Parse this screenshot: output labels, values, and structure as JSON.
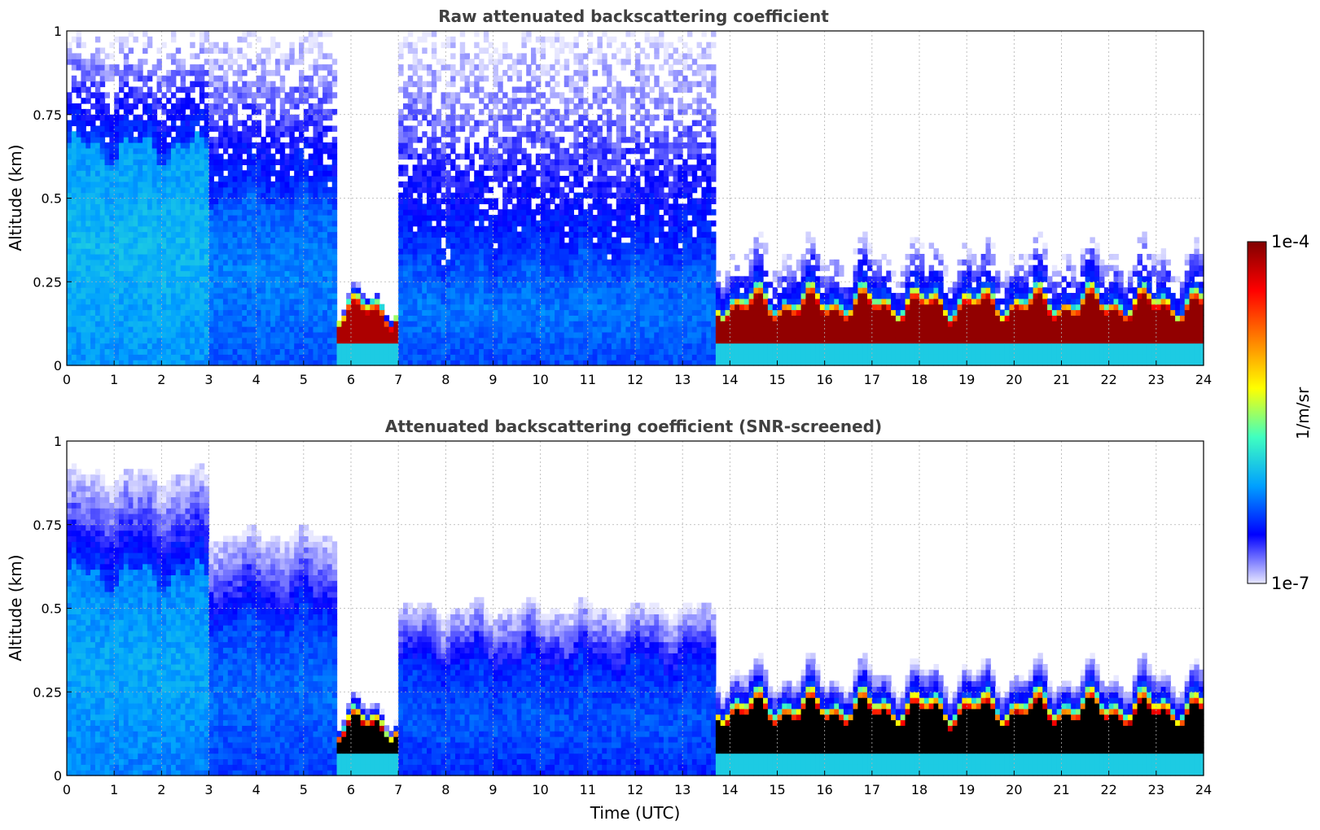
{
  "chart_data": [
    {
      "type": "heatmap",
      "title": "Raw attenuated backscattering coefficient",
      "xlabel": "",
      "ylabel": "Altitude (km)",
      "xlim": [
        0,
        24
      ],
      "ylim": [
        0,
        1
      ],
      "x_ticks": [
        "0",
        "1",
        "2",
        "3",
        "4",
        "5",
        "6",
        "7",
        "8",
        "9",
        "10",
        "11",
        "12",
        "13",
        "14",
        "15",
        "16",
        "17",
        "18",
        "19",
        "20",
        "21",
        "22",
        "23",
        "24"
      ],
      "y_ticks": [
        "0",
        "0.25",
        "0.5",
        "0.75",
        "1"
      ],
      "grid": true,
      "screened": false,
      "regimes": [
        {
          "t_start": 0,
          "t_end": 3,
          "cover_top_km": 1.0,
          "core_top_km": 0.65,
          "core_intensity": 0.32
        },
        {
          "t_start": 3,
          "t_end": 5.7,
          "cover_top_km": 1.0,
          "core_top_km": 0.5,
          "core_intensity": 0.26
        },
        {
          "t_start": 5.7,
          "t_end": 7.05,
          "cover_top_km": 0.2,
          "core_top_km": 0.18,
          "core_intensity": 0.95
        },
        {
          "t_start": 7.05,
          "t_end": 13.7,
          "cover_top_km": 1.0,
          "core_top_km": 0.3,
          "core_intensity": 0.25
        },
        {
          "t_start": 13.7,
          "t_end": 24,
          "cover_top_km": 0.34,
          "core_top_km": 0.2,
          "core_intensity": 0.98
        }
      ]
    },
    {
      "type": "heatmap",
      "title": "Attenuated backscattering coefficient (SNR-screened)",
      "xlabel": "Time (UTC)",
      "ylabel": "Altitude (km)",
      "xlim": [
        0,
        24
      ],
      "ylim": [
        0,
        1
      ],
      "x_ticks": [
        "0",
        "1",
        "2",
        "3",
        "4",
        "5",
        "6",
        "7",
        "8",
        "9",
        "10",
        "11",
        "12",
        "13",
        "14",
        "15",
        "16",
        "17",
        "18",
        "19",
        "20",
        "21",
        "22",
        "23",
        "24"
      ],
      "y_ticks": [
        "0",
        "0.25",
        "0.5",
        "0.75",
        "1"
      ],
      "grid": true,
      "screened": true,
      "saturated_color": "#000000",
      "regimes": [
        {
          "t_start": 0,
          "t_end": 3,
          "cover_top_km": 0.9,
          "core_top_km": 0.6,
          "core_intensity": 0.3
        },
        {
          "t_start": 3,
          "t_end": 5.7,
          "cover_top_km": 0.72,
          "core_top_km": 0.45,
          "core_intensity": 0.24
        },
        {
          "t_start": 5.7,
          "t_end": 7.05,
          "cover_top_km": 0.2,
          "core_top_km": 0.17,
          "core_intensity": 1.0
        },
        {
          "t_start": 7.05,
          "t_end": 13.7,
          "cover_top_km": 0.5,
          "core_top_km": 0.3,
          "core_intensity": 0.22
        },
        {
          "t_start": 13.7,
          "t_end": 24,
          "cover_top_km": 0.3,
          "core_top_km": 0.22,
          "core_intensity": 1.0
        }
      ]
    }
  ],
  "colorbar": {
    "label": "1/m/sr",
    "max_label": "1e-4",
    "min_label": "1e-7",
    "scale": "log",
    "colormap": [
      "#e8e8ff",
      "#0000ff",
      "#00a0ff",
      "#40ffc0",
      "#ffff00",
      "#ff8000",
      "#ff0000",
      "#800000"
    ]
  }
}
